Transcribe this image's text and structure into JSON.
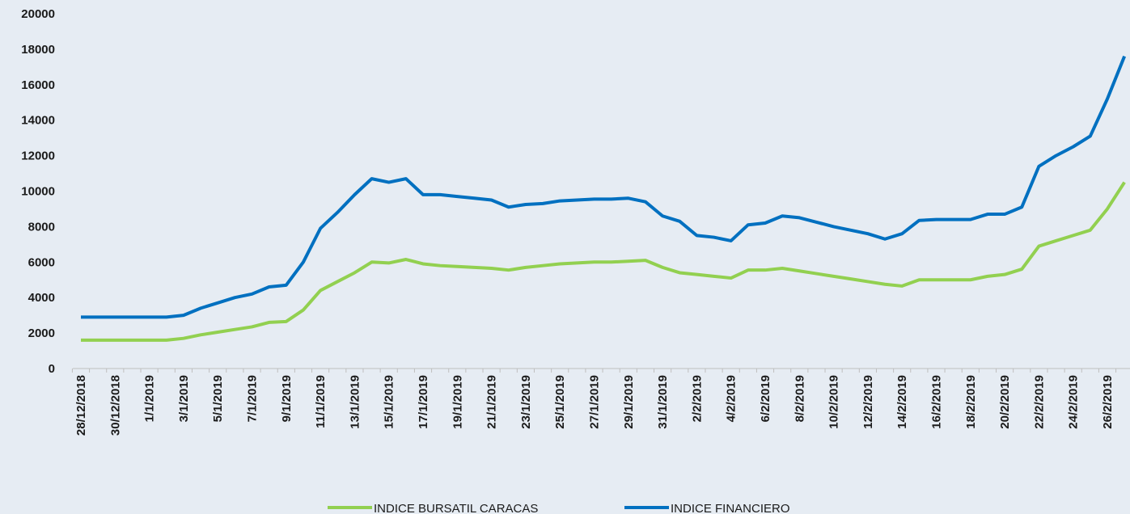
{
  "chart_data": {
    "type": "line",
    "categories": [
      "28/12/2018",
      null,
      "30/12/2018",
      null,
      "1/1/2019",
      null,
      "3/1/2019",
      null,
      "5/1/2019",
      null,
      "7/1/2019",
      null,
      "9/1/2019",
      null,
      "11/1/2019",
      null,
      "13/1/2019",
      null,
      "15/1/2019",
      null,
      "17/1/2019",
      null,
      "19/1/2019",
      null,
      "21/1/2019",
      null,
      "23/1/2019",
      null,
      "25/1/2019",
      null,
      "27/1/2019",
      null,
      "29/1/2019",
      null,
      "31/1/2019",
      null,
      "2/2/2019",
      null,
      "4/2/2019",
      null,
      "6/2/2019",
      null,
      "8/2/2019",
      null,
      "10/2/2019",
      null,
      "12/2/2019",
      null,
      "14/2/2019",
      null,
      "16/2/2019",
      null,
      "18/2/2019",
      null,
      "20/2/2019",
      null,
      "22/2/2019",
      null,
      "24/2/2019",
      null,
      "26/2/2019",
      null
    ],
    "series": [
      {
        "name": "INDICE BURSATIL CARACAS",
        "color": "#92d050",
        "values": [
          1600,
          1600,
          1600,
          1600,
          1600,
          1600,
          1700,
          1900,
          2050,
          2200,
          2350,
          2600,
          2650,
          3300,
          4400,
          4900,
          5400,
          6000,
          5950,
          6150,
          5900,
          5800,
          5750,
          5700,
          5650,
          5550,
          5700,
          5800,
          5900,
          5950,
          6000,
          6000,
          6050,
          6100,
          5700,
          5400,
          5300,
          5200,
          5100,
          5550,
          5550,
          5650,
          5500,
          5350,
          5200,
          5050,
          4900,
          4750,
          4650,
          5000,
          5000,
          5000,
          5000,
          5200,
          5300,
          5600,
          6900,
          7200,
          7500,
          7800,
          9000,
          10500
        ]
      },
      {
        "name": "INDICE FINANCIERO",
        "color": "#0070c0",
        "values": [
          2900,
          2900,
          2900,
          2900,
          2900,
          2900,
          3000,
          3400,
          3700,
          4000,
          4200,
          4600,
          4700,
          6000,
          7900,
          8800,
          9800,
          10700,
          10500,
          10700,
          9800,
          9800,
          9700,
          9600,
          9500,
          9100,
          9250,
          9300,
          9450,
          9500,
          9550,
          9550,
          9600,
          9400,
          8600,
          8300,
          7500,
          7400,
          7200,
          8100,
          8200,
          8600,
          8500,
          8250,
          8000,
          7800,
          7600,
          7300,
          7600,
          8350,
          8400,
          8400,
          8400,
          8700,
          8700,
          9100,
          11400,
          12000,
          12500,
          13100,
          15200,
          17600
        ]
      }
    ],
    "ylim": [
      0,
      20000
    ],
    "yticks": [
      0,
      2000,
      4000,
      6000,
      8000,
      10000,
      12000,
      14000,
      16000,
      18000,
      20000
    ],
    "grid": false,
    "legend": "bottom"
  }
}
